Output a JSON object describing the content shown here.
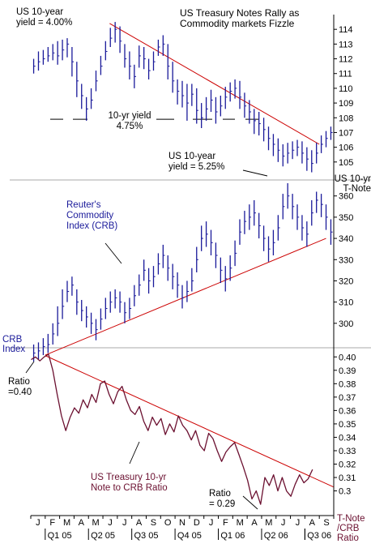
{
  "colors": {
    "bars": "#1a1a9a",
    "trend": "#cc0000",
    "ratio_line": "#6b1030",
    "axis": "#000000",
    "annotation_maroon": "#6b1030",
    "annotation_blue": "#1a1a9a",
    "frame": "#999999"
  },
  "chart_data": [
    {
      "type": "bar",
      "style": "high-low-close",
      "panel": "top",
      "title_lines": [
        "US Treasury Notes Rally as",
        "Commodity markets Fizzle"
      ],
      "axis_label_lines": [
        "US 10-yr",
        "T-Note"
      ],
      "ylim": [
        104,
        115
      ],
      "yticks": [
        105,
        106,
        107,
        108,
        109,
        110,
        111,
        112,
        113,
        114
      ],
      "grid": false,
      "x_start": "2005-01",
      "x_end": "2006-09",
      "series": [
        {
          "values": [
            111.5,
            111.8,
            112.0,
            112.2,
            112.4,
            112.2,
            112.6,
            113.0,
            111.8,
            110.5,
            109.5,
            108.6,
            109.2,
            110.5,
            111.5,
            112.5,
            113.4,
            114.0,
            113.2,
            112.0,
            111.5,
            110.8,
            112.2,
            112.0,
            111.2,
            111.8,
            112.8,
            113.0,
            111.5,
            110.5,
            109.8,
            109.5,
            109.0,
            109.6,
            108.5,
            108.0,
            108.6,
            109.2,
            108.4,
            108.8,
            109.4,
            109.8,
            110.0,
            109.4,
            108.8,
            108.4,
            107.8,
            107.6,
            107.2,
            106.6,
            106.2,
            105.8,
            105.4,
            105.6,
            105.8,
            106.0,
            105.6,
            105.2,
            104.9,
            105.6,
            106.2,
            106.6,
            107.0
          ],
          "highs": [
            112.0,
            112.5,
            112.6,
            112.8,
            113.0,
            113.2,
            113.3,
            113.4,
            112.8,
            111.8,
            110.3,
            109.4,
            110.0,
            111.2,
            112.2,
            113.2,
            114.1,
            114.5,
            114.2,
            113.0,
            112.5,
            111.6,
            112.9,
            112.8,
            112.0,
            112.5,
            113.3,
            113.6,
            113.0,
            111.8,
            110.6,
            110.5,
            110.3,
            110.3,
            110.0,
            109.0,
            109.4,
            109.9,
            109.4,
            109.5,
            110.1,
            110.4,
            110.6,
            110.5,
            109.7,
            109.2,
            108.6,
            108.4,
            108.0,
            107.4,
            106.9,
            106.6,
            106.2,
            106.3,
            106.4,
            106.5,
            106.4,
            106.0,
            105.8,
            106.3,
            106.8,
            107.1,
            107.4
          ],
          "lows": [
            111.0,
            111.2,
            111.6,
            111.8,
            111.9,
            111.6,
            111.9,
            112.1,
            110.8,
            109.4,
            108.6,
            107.8,
            108.6,
            109.8,
            110.9,
            111.9,
            112.8,
            113.1,
            112.4,
            111.4,
            110.6,
            110.0,
            111.4,
            111.3,
            110.6,
            111.2,
            112.2,
            112.2,
            110.6,
            109.7,
            108.9,
            108.7,
            107.8,
            108.8,
            107.6,
            107.3,
            107.8,
            108.4,
            107.6,
            108.1,
            108.6,
            109.1,
            109.3,
            108.6,
            108.0,
            107.6,
            106.9,
            106.8,
            106.4,
            105.8,
            105.4,
            105.0,
            104.7,
            104.9,
            105.2,
            105.4,
            104.9,
            104.4,
            104.3,
            104.9,
            105.6,
            106.0,
            106.5
          ]
        }
      ],
      "trend_line": {
        "x": [
          "2005-06-15",
          "2006-09-01"
        ],
        "y": [
          114.4,
          106.2
        ]
      },
      "annotations": [
        {
          "lines": [
            "US 10-year",
            "yield = 4.00%"
          ],
          "color": "black"
        },
        {
          "lines": [
            "10-yr yield",
            "4.75%"
          ],
          "color": "black"
        },
        {
          "lines": [
            "US 10-year",
            "yield = 5.25%"
          ],
          "color": "black"
        }
      ],
      "support_line_level": 107.9
    },
    {
      "type": "bar",
      "style": "high-low-close",
      "panel": "middle",
      "axis_label_lines": [
        "CRB",
        "Index"
      ],
      "ylim": [
        290,
        366
      ],
      "yticks": [
        300,
        310,
        320,
        330,
        340,
        350,
        360
      ],
      "grid": false,
      "x_start": "2005-01",
      "x_end": "2006-09",
      "series": [
        {
          "values": [
            286,
            287,
            289,
            290,
            295,
            300,
            308,
            315,
            318,
            310,
            306,
            303,
            300,
            297,
            302,
            307,
            310,
            312,
            310,
            305,
            307,
            313,
            318,
            325,
            320,
            322,
            328,
            332,
            326,
            322,
            318,
            312,
            315,
            320,
            330,
            340,
            342,
            338,
            332,
            325,
            321,
            326,
            333,
            343,
            348,
            350,
            352,
            346,
            340,
            335,
            338,
            345,
            355,
            360,
            355,
            350,
            345,
            342,
            352,
            358,
            356,
            350,
            343
          ],
          "highs": [
            290,
            291,
            293,
            295,
            300,
            308,
            316,
            320,
            322,
            316,
            311,
            308,
            305,
            302,
            307,
            312,
            315,
            316,
            315,
            310,
            312,
            318,
            323,
            330,
            326,
            327,
            333,
            337,
            332,
            328,
            324,
            318,
            320,
            326,
            336,
            346,
            348,
            344,
            338,
            331,
            327,
            332,
            339,
            349,
            353,
            356,
            358,
            352,
            346,
            341,
            344,
            351,
            361,
            366,
            361,
            356,
            351,
            348,
            358,
            362,
            361,
            356,
            349
          ],
          "lows": [
            282,
            283,
            285,
            286,
            290,
            294,
            302,
            310,
            313,
            304,
            301,
            298,
            295,
            292,
            297,
            302,
            305,
            307,
            305,
            300,
            302,
            308,
            313,
            320,
            314,
            317,
            323,
            326,
            320,
            316,
            312,
            307,
            310,
            315,
            324,
            334,
            336,
            332,
            326,
            319,
            315,
            320,
            327,
            337,
            342,
            344,
            346,
            340,
            334,
            329,
            332,
            339,
            349,
            354,
            349,
            344,
            339,
            336,
            346,
            352,
            350,
            344,
            337
          ]
        }
      ],
      "trend_line": {
        "x": [
          "2005-02-01",
          "2006-09-15"
        ],
        "y": [
          285,
          340
        ]
      },
      "annotations": [
        {
          "lines": [
            "Reuter's",
            "Commodity",
            "Index (CRB)"
          ],
          "color": "blue"
        }
      ]
    },
    {
      "type": "line",
      "panel": "bottom",
      "ylim": [
        0.284,
        0.405
      ],
      "yticks": [
        0.3,
        0.31,
        0.32,
        0.33,
        0.34,
        0.35,
        0.36,
        0.37,
        0.38,
        0.39,
        0.4
      ],
      "ytick_labels": [
        "0.3",
        "0.31",
        "0.32",
        "0.33",
        "0.34",
        "0.35",
        "0.36",
        "0.37",
        "0.38",
        "0.39",
        "0.40"
      ],
      "axis_label_lines": [
        "T-Note",
        "/CRB",
        "Ratio"
      ],
      "grid": false,
      "x_start": "2005-01",
      "x_end": "2006-09",
      "x_month_labels": [
        "J",
        "F",
        "M",
        "A",
        "M",
        "J",
        "J",
        "A",
        "S",
        "O",
        "N",
        "D",
        "J",
        "F",
        "M",
        "A",
        "M",
        "J",
        "J",
        "A",
        "S"
      ],
      "quarter_labels": [
        "Q1 05",
        "Q2 05",
        "Q3 05",
        "Q4 05",
        "Q1 06",
        "Q2 06",
        "Q3 06"
      ],
      "series": [
        {
          "x": [
            0.0,
            0.3,
            0.6,
            0.9,
            1.2,
            1.5,
            1.8,
            2.1,
            2.4,
            2.7,
            3.0,
            3.3,
            3.6,
            3.9,
            4.2,
            4.5,
            4.8,
            5.1,
            5.4,
            5.7,
            6.0,
            6.3,
            6.6,
            6.9,
            7.2,
            7.5,
            7.8,
            8.1,
            8.4,
            8.7,
            9.0,
            9.3,
            9.6,
            9.9,
            10.2,
            10.5,
            10.8,
            11.1,
            11.4,
            11.7,
            12.0,
            12.3,
            12.6,
            12.9,
            13.2,
            13.5,
            13.8,
            14.1,
            14.4,
            14.7,
            15.0,
            15.3,
            15.6,
            15.9,
            16.2,
            16.5,
            16.8,
            17.1,
            17.4,
            17.7,
            18.0,
            18.3,
            18.6,
            18.9,
            19.2,
            19.5
          ],
          "y": [
            0.398,
            0.4,
            0.397,
            0.4,
            0.402,
            0.39,
            0.372,
            0.356,
            0.345,
            0.355,
            0.362,
            0.358,
            0.368,
            0.362,
            0.372,
            0.366,
            0.38,
            0.382,
            0.372,
            0.365,
            0.374,
            0.378,
            0.368,
            0.36,
            0.357,
            0.363,
            0.352,
            0.345,
            0.355,
            0.349,
            0.354,
            0.342,
            0.35,
            0.344,
            0.356,
            0.349,
            0.345,
            0.338,
            0.345,
            0.334,
            0.33,
            0.343,
            0.339,
            0.33,
            0.322,
            0.329,
            0.333,
            0.336,
            0.327,
            0.318,
            0.308,
            0.294,
            0.3,
            0.29,
            0.31,
            0.304,
            0.312,
            0.3,
            0.31,
            0.3,
            0.296,
            0.305,
            0.312,
            0.306,
            0.309,
            0.316
          ]
        }
      ],
      "trend_line": {
        "x": [
          "2005-02-01",
          "2006-09-30"
        ],
        "y": [
          0.401,
          0.303
        ]
      },
      "annotations": [
        {
          "lines": [
            "Ratio",
            "=0.40"
          ],
          "color": "black"
        },
        {
          "lines": [
            "US Treasury 10-yr",
            "Note to CRB Ratio"
          ],
          "color": "maroon"
        },
        {
          "lines": [
            "Ratio",
            "= 0.29"
          ],
          "color": "black"
        }
      ]
    }
  ]
}
